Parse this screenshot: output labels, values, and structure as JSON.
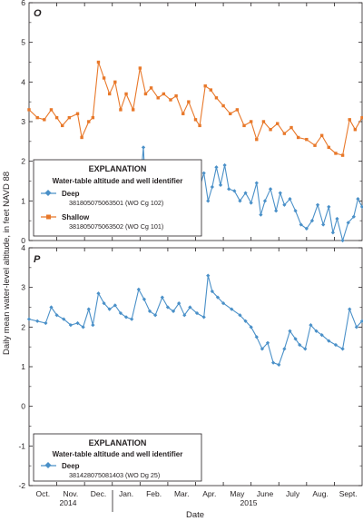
{
  "ylabel": "Daily mean water-level altitude, in feet NAVD 88",
  "xlabel": "Date",
  "months": [
    "Oct.",
    "Nov.",
    "Dec.",
    "Jan.",
    "Feb.",
    "Mar.",
    "Apr.",
    "May",
    "June",
    "July",
    "Aug.",
    "Sept."
  ],
  "years": [
    "2014",
    "2015"
  ],
  "colors": {
    "deep": "#4a90c8",
    "shallow": "#e8782a",
    "axis": "#231f20"
  },
  "chart_data": [
    {
      "type": "line",
      "panel_label": "O",
      "ylim": [
        0,
        6
      ],
      "yticks": [
        0,
        1,
        2,
        3,
        4,
        5,
        6
      ],
      "x_unit": "months since Oct. 1, 2014",
      "xlim": [
        0,
        12
      ],
      "legend": {
        "title": "EXPLANATION",
        "subtitle": "Water-table altitude and well identifier",
        "placement": "lower-left"
      },
      "series": [
        {
          "name": "Deep",
          "well_id": "381805075063501 (WO Cg 102)",
          "color": "#4a90c8",
          "marker": "diamond",
          "x": [
            3.85,
            4.0,
            4.12,
            4.2,
            4.3,
            4.45,
            4.55,
            4.7,
            4.85,
            5.0,
            5.2,
            5.4,
            5.55,
            5.7,
            5.85,
            6.0,
            6.15,
            6.3,
            6.45,
            6.6,
            6.75,
            6.9,
            7.05,
            7.2,
            7.4,
            7.6,
            7.8,
            8.0,
            8.2,
            8.35,
            8.5,
            8.7,
            8.9,
            9.05,
            9.2,
            9.4,
            9.6,
            9.8,
            10.0,
            10.2,
            10.4,
            10.6,
            10.8,
            10.95,
            11.1,
            11.3,
            11.5,
            11.7,
            11.85,
            12.0
          ],
          "y": [
            1.4,
            1.35,
            2.35,
            1.2,
            0.8,
            1.5,
            1.2,
            1.35,
            1.0,
            1.1,
            1.3,
            1.05,
            1.2,
            1.5,
            1.2,
            1.55,
            1.35,
            1.7,
            1.0,
            1.35,
            1.85,
            1.4,
            1.9,
            1.3,
            1.25,
            1.0,
            1.2,
            0.95,
            1.45,
            0.65,
            1.0,
            1.3,
            0.75,
            1.2,
            0.9,
            1.05,
            0.75,
            0.4,
            0.3,
            0.5,
            0.9,
            0.4,
            0.85,
            0.2,
            0.55,
            0.0,
            0.45,
            0.6,
            1.05,
            0.85
          ]
        },
        {
          "name": "Shallow",
          "well_id": "381805075063502 (WO Cg 101)",
          "color": "#e8782a",
          "marker": "square",
          "x": [
            0.0,
            0.3,
            0.55,
            0.8,
            1.0,
            1.2,
            1.45,
            1.75,
            1.9,
            2.15,
            2.3,
            2.5,
            2.7,
            2.9,
            3.1,
            3.3,
            3.5,
            3.75,
            4.0,
            4.2,
            4.4,
            4.65,
            4.85,
            5.1,
            5.3,
            5.55,
            5.75,
            6.0,
            6.15,
            6.35,
            6.55,
            6.75,
            7.0,
            7.25,
            7.5,
            7.75,
            8.0,
            8.2,
            8.45,
            8.7,
            8.95,
            9.2,
            9.45,
            9.7,
            10.0,
            10.3,
            10.55,
            10.8,
            11.05,
            11.3,
            11.55,
            11.75,
            12.0
          ],
          "y": [
            3.3,
            3.1,
            3.05,
            3.3,
            3.1,
            2.9,
            3.1,
            3.2,
            2.6,
            3.0,
            3.1,
            4.5,
            4.1,
            3.7,
            4.0,
            3.3,
            3.7,
            3.3,
            4.35,
            3.7,
            3.85,
            3.6,
            3.7,
            3.55,
            3.65,
            3.2,
            3.5,
            3.05,
            2.9,
            3.9,
            3.8,
            3.6,
            3.4,
            3.2,
            3.3,
            2.9,
            3.0,
            2.55,
            3.0,
            2.8,
            2.95,
            2.7,
            2.85,
            2.6,
            2.55,
            2.4,
            2.65,
            2.35,
            2.2,
            2.15,
            3.05,
            2.8,
            3.1
          ]
        }
      ]
    },
    {
      "type": "line",
      "panel_label": "P",
      "ylim": [
        -2,
        4
      ],
      "yticks": [
        -2,
        -1,
        0,
        1,
        2,
        3,
        4
      ],
      "x_unit": "months since Oct. 1, 2014",
      "xlim": [
        0,
        12
      ],
      "legend": {
        "title": "EXPLANATION",
        "subtitle": "Water-table altitude and well identifier",
        "placement": "lower-left"
      },
      "series": [
        {
          "name": "Deep",
          "well_id": "381428075081403 (WO Dg 25)",
          "color": "#4a90c8",
          "marker": "diamond",
          "x": [
            0.0,
            0.3,
            0.6,
            0.8,
            1.0,
            1.25,
            1.5,
            1.75,
            1.95,
            2.15,
            2.3,
            2.5,
            2.7,
            2.9,
            3.1,
            3.3,
            3.5,
            3.7,
            3.95,
            4.15,
            4.35,
            4.55,
            4.8,
            5.0,
            5.2,
            5.4,
            5.6,
            5.8,
            6.05,
            6.3,
            6.45,
            6.6,
            6.8,
            7.0,
            7.3,
            7.6,
            7.8,
            8.0,
            8.2,
            8.4,
            8.6,
            8.8,
            9.0,
            9.2,
            9.4,
            9.6,
            9.75,
            9.95,
            10.15,
            10.35,
            10.55,
            10.8,
            11.05,
            11.3,
            11.55,
            11.8,
            12.0
          ],
          "y": [
            2.2,
            2.15,
            2.1,
            2.5,
            2.3,
            2.2,
            2.05,
            2.1,
            2.0,
            2.45,
            2.05,
            2.85,
            2.6,
            2.45,
            2.55,
            2.35,
            2.25,
            2.2,
            2.95,
            2.7,
            2.4,
            2.3,
            2.75,
            2.5,
            2.4,
            2.6,
            2.3,
            2.5,
            2.35,
            2.25,
            3.3,
            2.9,
            2.75,
            2.6,
            2.45,
            2.3,
            2.15,
            2.0,
            1.75,
            1.45,
            1.6,
            1.1,
            1.05,
            1.45,
            1.9,
            1.7,
            1.55,
            1.45,
            2.05,
            1.9,
            1.8,
            1.65,
            1.55,
            1.45,
            2.45,
            2.0,
            2.15
          ]
        }
      ]
    }
  ]
}
